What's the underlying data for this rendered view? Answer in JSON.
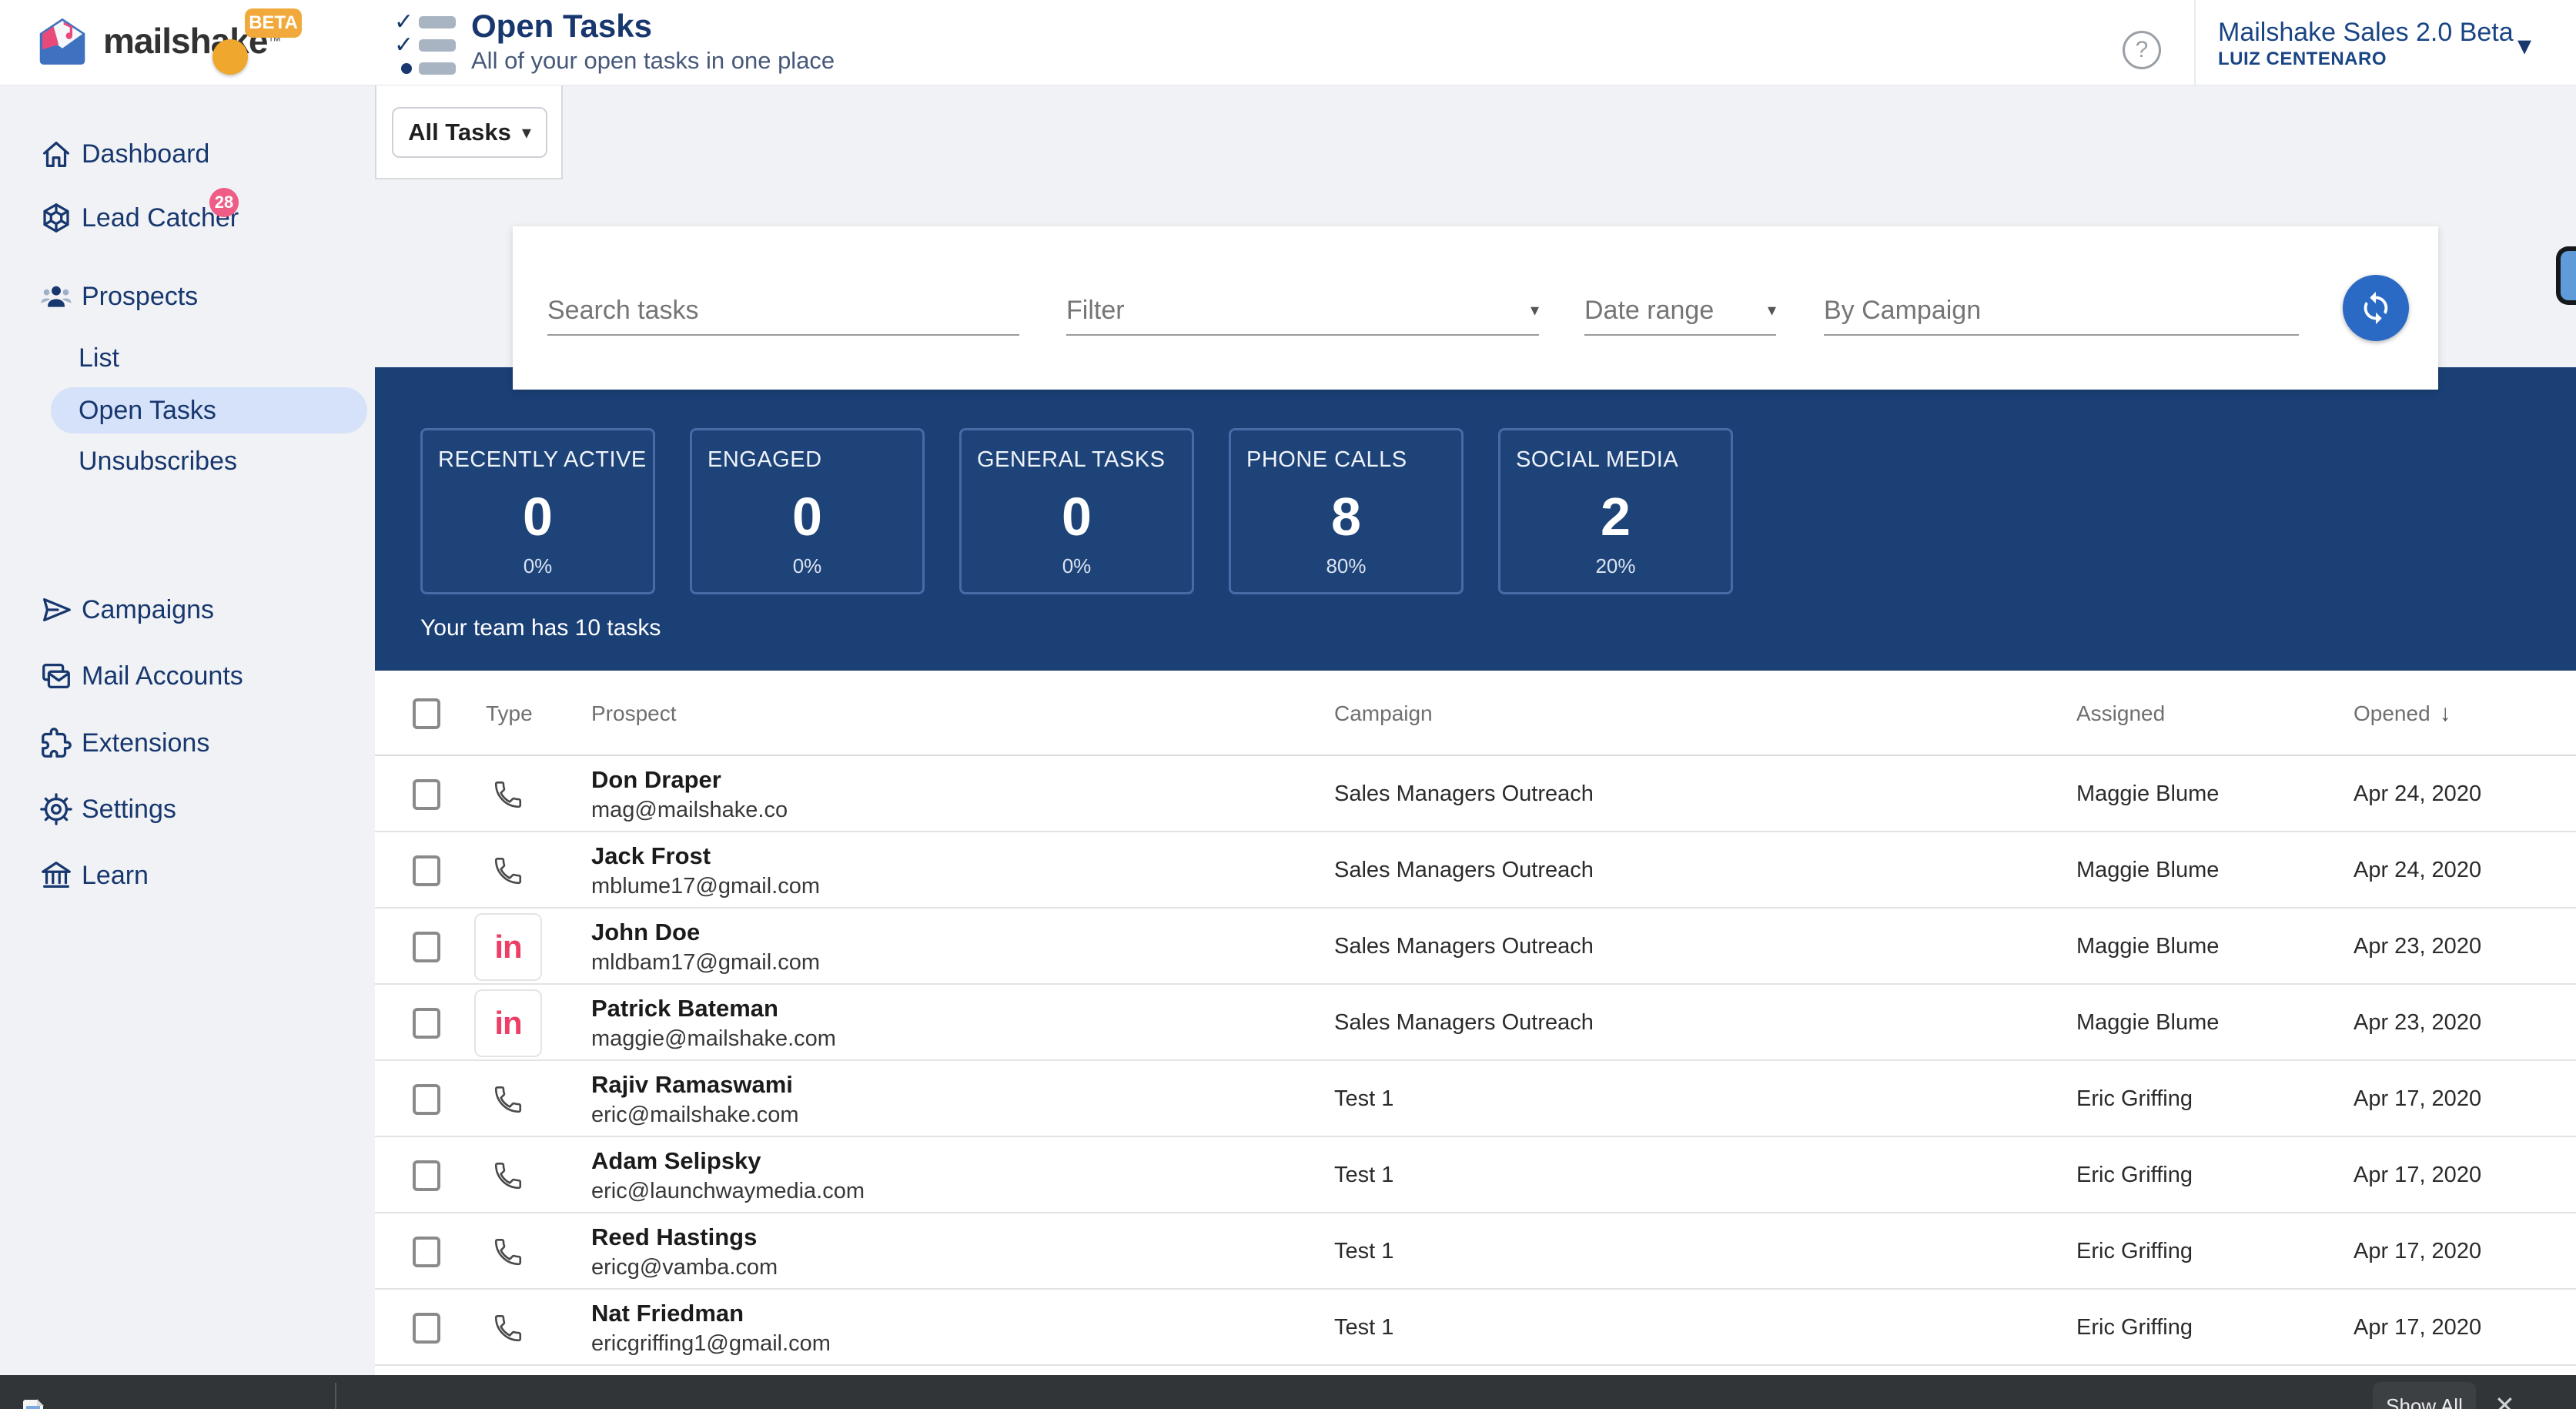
{
  "header": {
    "logo_text": "mailshake",
    "logo_tm": "™",
    "beta_badge": "BETA",
    "page_title": "Open Tasks",
    "page_subtitle": "All of your open tasks in one place",
    "help_glyph": "?",
    "account_name": "Mailshake Sales 2.0 Beta",
    "account_user": "LUIZ CENTENARO",
    "caret": "▾"
  },
  "sidebar": {
    "items": [
      {
        "label": "Dashboard",
        "icon": "home"
      },
      {
        "label": "Lead Catcher",
        "icon": "web",
        "badge": "28"
      },
      {
        "label": "Prospects",
        "icon": "people"
      },
      {
        "label": "List",
        "sub": true
      },
      {
        "label": "Open Tasks",
        "sub": true,
        "active": true
      },
      {
        "label": "Unsubscribes",
        "sub": true
      },
      {
        "label": "Campaigns",
        "icon": "send"
      },
      {
        "label": "Mail Accounts",
        "icon": "mail"
      },
      {
        "label": "Extensions",
        "icon": "puzzle"
      },
      {
        "label": "Settings",
        "icon": "gear"
      },
      {
        "label": "Learn",
        "icon": "bank"
      }
    ]
  },
  "toolbar": {
    "tasks_dropdown_label": "All Tasks",
    "caret": "▾"
  },
  "filters": {
    "search_placeholder": "Search tasks",
    "filter_label": "Filter",
    "date_range_label": "Date range",
    "by_campaign_placeholder": "By Campaign"
  },
  "stats": {
    "cards": [
      {
        "label": "RECENTLY ACTIVE",
        "value": "0",
        "percent": "0%"
      },
      {
        "label": "ENGAGED",
        "value": "0",
        "percent": "0%"
      },
      {
        "label": "GENERAL TASKS",
        "value": "0",
        "percent": "0%"
      },
      {
        "label": "PHONE CALLS",
        "value": "8",
        "percent": "80%"
      },
      {
        "label": "SOCIAL MEDIA",
        "value": "2",
        "percent": "20%"
      }
    ],
    "team_summary": "Your team has 10 tasks"
  },
  "table": {
    "columns": {
      "type": "Type",
      "prospect": "Prospect",
      "campaign": "Campaign",
      "assigned": "Assigned",
      "opened": "Opened"
    },
    "sort_glyph": "↓",
    "linkedin_glyph": "in",
    "rows": [
      {
        "type": "phone",
        "name": "Don Draper",
        "email": "mag@mailshake.co",
        "campaign": "Sales Managers Outreach",
        "assigned": "Maggie Blume",
        "opened": "Apr 24, 2020"
      },
      {
        "type": "phone",
        "name": "Jack Frost",
        "email": "mblume17@gmail.com",
        "campaign": "Sales Managers Outreach",
        "assigned": "Maggie Blume",
        "opened": "Apr 24, 2020"
      },
      {
        "type": "linkedin",
        "name": "John Doe",
        "email": "mldbam17@gmail.com",
        "campaign": "Sales Managers Outreach",
        "assigned": "Maggie Blume",
        "opened": "Apr 23, 2020"
      },
      {
        "type": "linkedin",
        "name": "Patrick Bateman",
        "email": "maggie@mailshake.com",
        "campaign": "Sales Managers Outreach",
        "assigned": "Maggie Blume",
        "opened": "Apr 23, 2020"
      },
      {
        "type": "phone",
        "name": "Rajiv Ramaswami",
        "email": "eric@mailshake.com",
        "campaign": "Test 1",
        "assigned": "Eric Griffing",
        "opened": "Apr 17, 2020"
      },
      {
        "type": "phone",
        "name": "Adam Selipsky",
        "email": "eric@launchwaymedia.com",
        "campaign": "Test 1",
        "assigned": "Eric Griffing",
        "opened": "Apr 17, 2020"
      },
      {
        "type": "phone",
        "name": "Reed Hastings",
        "email": "ericg@vamba.com",
        "campaign": "Test 1",
        "assigned": "Eric Griffing",
        "opened": "Apr 17, 2020"
      },
      {
        "type": "phone",
        "name": "Nat Friedman",
        "email": "ericgriffing1@gmail.com",
        "campaign": "Test 1",
        "assigned": "Eric Griffing",
        "opened": "Apr 17, 2020"
      }
    ]
  },
  "downloads": {
    "show_all_label": "Show All",
    "close_glyph": "✕"
  },
  "colors": {
    "navy_text": "#17376e",
    "panel_navy": "#1b4076",
    "pink_badge": "#ef5c86",
    "linkedin_pink": "#ec3e66",
    "accent_blue": "#2a6ac4",
    "beta_orange": "#f2a93b"
  }
}
